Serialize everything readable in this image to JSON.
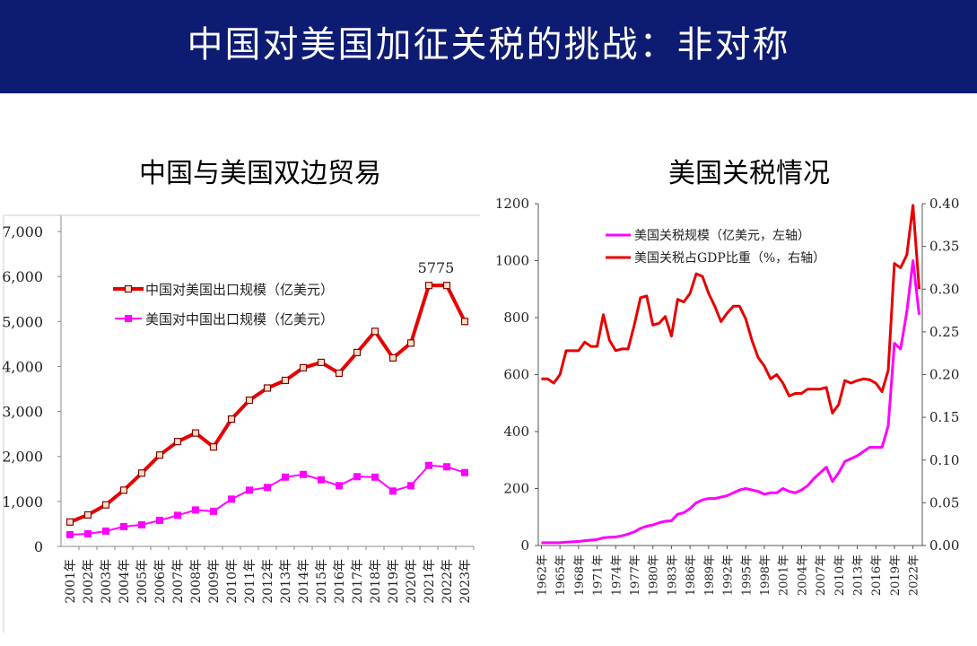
{
  "page": {
    "title": "中国对美国加征关税的挑战：非对称"
  },
  "colors": {
    "banner": "#0d1b73",
    "red": "#e60000",
    "magenta": "#ff00ff"
  },
  "chart_data": [
    {
      "type": "line",
      "title": "中国与美国双边贸易",
      "categories": [
        "2001年",
        "2002年",
        "2003年",
        "2004年",
        "2005年",
        "2006年",
        "2007年",
        "2008年",
        "2009年",
        "2010年",
        "2011年",
        "2012年",
        "2013年",
        "2014年",
        "2015年",
        "2016年",
        "2017年",
        "2018年",
        "2019年",
        "2020年",
        "2021年",
        "2022年",
        "2023年"
      ],
      "series": [
        {
          "name": "中国对美国出口规模（亿美元）",
          "color": "#e60000",
          "marker": "hollow-square",
          "values": [
            543,
            700,
            924,
            1250,
            1630,
            2030,
            2330,
            2520,
            2210,
            2830,
            3250,
            3520,
            3690,
            3970,
            4090,
            3850,
            4310,
            4780,
            4190,
            4520,
            5800,
            5800,
            5000
          ]
        },
        {
          "name": "美国对中国出口规模（亿美元）",
          "color": "#ff00ff",
          "marker": "filled-square",
          "values": [
            260,
            280,
            340,
            440,
            480,
            580,
            690,
            810,
            780,
            1050,
            1250,
            1310,
            1540,
            1600,
            1480,
            1350,
            1550,
            1540,
            1230,
            1350,
            1800,
            1770,
            1640
          ]
        }
      ],
      "annotation": {
        "label": "5775",
        "index": 20
      },
      "yticks": [
        "0",
        "1,000",
        "2,000",
        "3,000",
        "4,000",
        "5,000",
        "6,000",
        "7,000"
      ],
      "ylim": [
        0,
        7000
      ],
      "legend": "top-left"
    },
    {
      "type": "line",
      "title": "美国关税情况",
      "x": [
        1962,
        1963,
        1964,
        1965,
        1966,
        1967,
        1968,
        1969,
        1970,
        1971,
        1972,
        1973,
        1974,
        1975,
        1976,
        1977,
        1978,
        1979,
        1980,
        1981,
        1982,
        1983,
        1984,
        1985,
        1986,
        1987,
        1988,
        1989,
        1990,
        1991,
        1992,
        1993,
        1994,
        1995,
        1996,
        1997,
        1998,
        1999,
        2000,
        2001,
        2002,
        2003,
        2004,
        2005,
        2006,
        2007,
        2008,
        2009,
        2010,
        2011,
        2012,
        2013,
        2014,
        2015,
        2016,
        2017,
        2018,
        2019,
        2020,
        2021,
        2022,
        2023
      ],
      "xticks": [
        "1962年",
        "1965年",
        "1968年",
        "1971年",
        "1974年",
        "1977年",
        "1980年",
        "1983年",
        "1986年",
        "1989年",
        "1992年",
        "1995年",
        "1998年",
        "2001年",
        "2004年",
        "2007年",
        "2010年",
        "2013年",
        "2016年",
        "2019年",
        "2022年"
      ],
      "series": [
        {
          "name": "美国关税规模（亿美元，左轴）",
          "color": "#ff00ff",
          "axis": "left",
          "values": [
            10,
            10,
            10,
            10,
            12,
            13,
            14,
            17,
            19,
            21,
            27,
            29,
            30,
            34,
            40,
            48,
            60,
            68,
            72,
            80,
            85,
            87,
            110,
            115,
            130,
            150,
            160,
            165,
            165,
            170,
            175,
            185,
            195,
            200,
            195,
            190,
            180,
            185,
            185,
            200,
            190,
            185,
            195,
            210,
            235,
            255,
            275,
            225,
            255,
            295,
            305,
            315,
            330,
            345,
            345,
            345,
            420,
            710,
            690,
            820,
            1000,
            810
          ]
        },
        {
          "name": "美国关税占GDP比重（%，右轴）",
          "color": "#e60000",
          "axis": "right",
          "values": [
            0.195,
            0.195,
            0.19,
            0.2,
            0.228,
            0.228,
            0.228,
            0.238,
            0.233,
            0.233,
            0.27,
            0.24,
            0.228,
            0.23,
            0.23,
            0.258,
            0.29,
            0.292,
            0.258,
            0.26,
            0.268,
            0.245,
            0.288,
            0.285,
            0.295,
            0.318,
            0.315,
            0.295,
            0.28,
            0.262,
            0.272,
            0.28,
            0.28,
            0.265,
            0.24,
            0.22,
            0.21,
            0.195,
            0.2,
            0.19,
            0.175,
            0.178,
            0.178,
            0.183,
            0.183,
            0.183,
            0.185,
            0.155,
            0.165,
            0.193,
            0.19,
            0.193,
            0.195,
            0.194,
            0.19,
            0.18,
            0.205,
            0.33,
            0.325,
            0.34,
            0.398,
            0.3
          ]
        }
      ],
      "yticks_left": [
        "0",
        "200",
        "400",
        "600",
        "800",
        "1000",
        "1200"
      ],
      "ylim_left": [
        0,
        1200
      ],
      "yticks_right": [
        "0.00",
        "0.05",
        "0.10",
        "0.15",
        "0.20",
        "0.25",
        "0.30",
        "0.35",
        "0.40"
      ],
      "ylim_right": [
        0,
        0.4
      ],
      "legend": "top-left"
    }
  ]
}
